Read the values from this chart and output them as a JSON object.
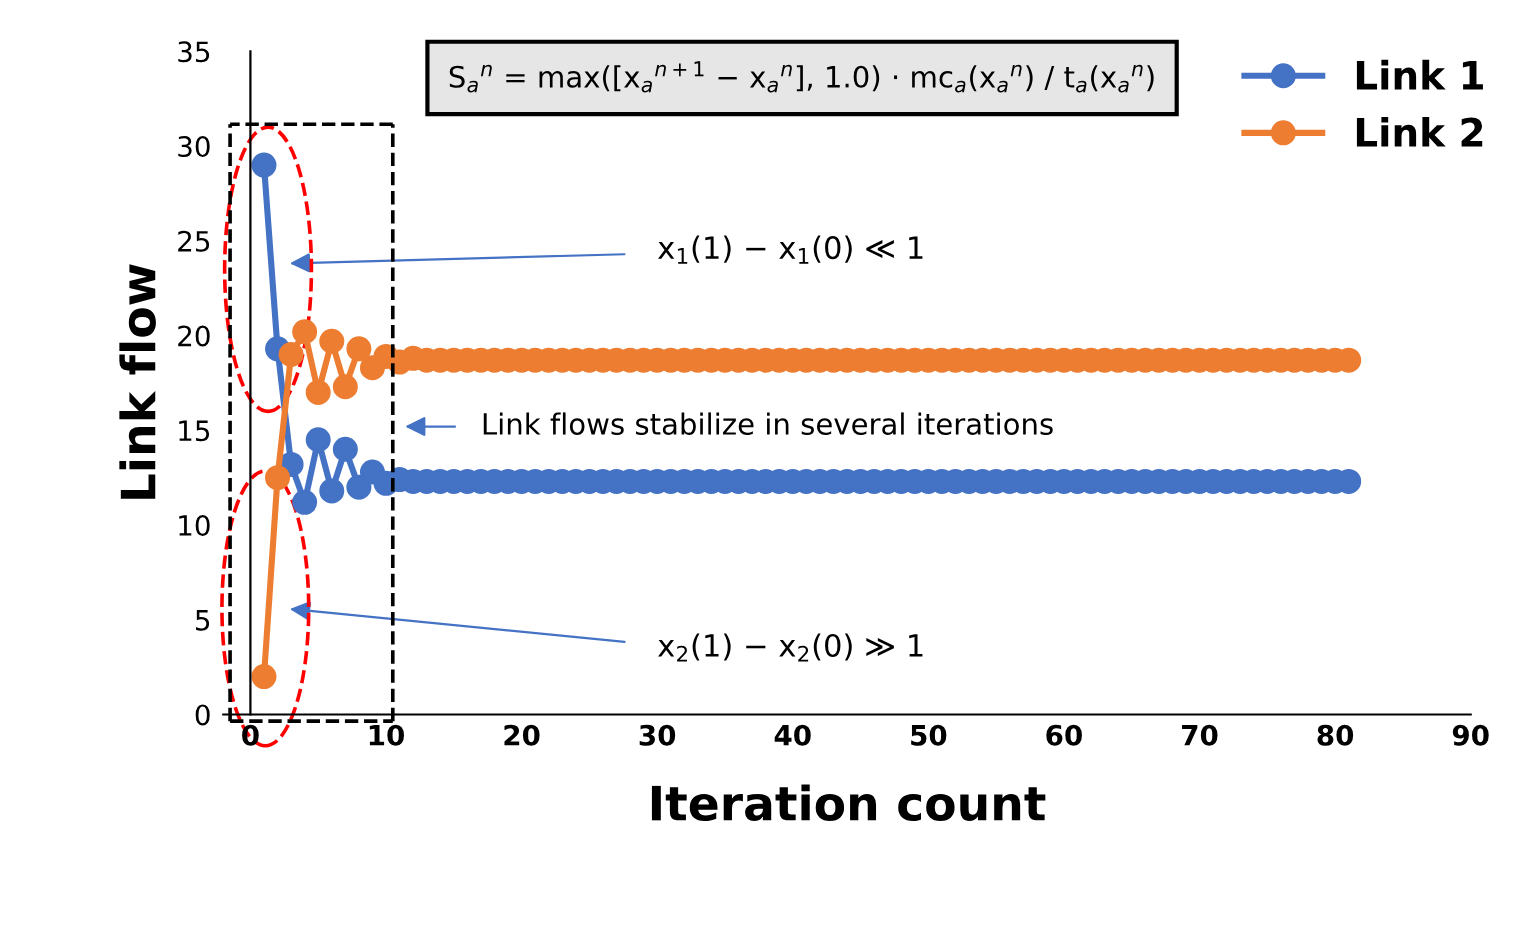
{
  "chart_data": {
    "type": "line",
    "xlabel": "Iteration count",
    "ylabel": "Link flow",
    "x": [
      1,
      2,
      3,
      4,
      5,
      6,
      7,
      8,
      9,
      10,
      11,
      12,
      13,
      14,
      15,
      16,
      17,
      18,
      19,
      20,
      21,
      22,
      23,
      24,
      25,
      26,
      27,
      28,
      29,
      30,
      31,
      32,
      33,
      34,
      35,
      36,
      37,
      38,
      39,
      40,
      41,
      42,
      43,
      44,
      45,
      46,
      47,
      48,
      49,
      50,
      51,
      52,
      53,
      54,
      55,
      56,
      57,
      58,
      59,
      60,
      61,
      62,
      63,
      64,
      65,
      66,
      67,
      68,
      69,
      70,
      71,
      72,
      73,
      74,
      75,
      76,
      77,
      78,
      79,
      80,
      81
    ],
    "series": [
      {
        "name": "Link 1",
        "color": "#4472c4",
        "values": [
          29,
          19.3,
          13.2,
          11.2,
          14.5,
          11.8,
          14,
          12,
          12.8,
          12.2,
          12.4,
          12.3,
          12.3,
          12.3,
          12.3,
          12.3,
          12.3,
          12.3,
          12.3,
          12.3,
          12.3,
          12.3,
          12.3,
          12.3,
          12.3,
          12.3,
          12.3,
          12.3,
          12.3,
          12.3,
          12.3,
          12.3,
          12.3,
          12.3,
          12.3,
          12.3,
          12.3,
          12.3,
          12.3,
          12.3,
          12.3,
          12.3,
          12.3,
          12.3,
          12.3,
          12.3,
          12.3,
          12.3,
          12.3,
          12.3,
          12.3,
          12.3,
          12.3,
          12.3,
          12.3,
          12.3,
          12.3,
          12.3,
          12.3,
          12.3,
          12.3,
          12.3,
          12.3,
          12.3,
          12.3,
          12.3,
          12.3,
          12.3,
          12.3,
          12.3,
          12.3,
          12.3,
          12.3,
          12.3,
          12.3,
          12.3,
          12.3,
          12.3,
          12.3,
          12.3,
          12.3
        ]
      },
      {
        "name": "Link 2",
        "color": "#ed7d31",
        "values": [
          2,
          12.5,
          19,
          20.2,
          17,
          19.7,
          17.3,
          19.3,
          18.3,
          18.9,
          18.6,
          18.8,
          18.7,
          18.7,
          18.7,
          18.7,
          18.7,
          18.7,
          18.7,
          18.7,
          18.7,
          18.7,
          18.7,
          18.7,
          18.7,
          18.7,
          18.7,
          18.7,
          18.7,
          18.7,
          18.7,
          18.7,
          18.7,
          18.7,
          18.7,
          18.7,
          18.7,
          18.7,
          18.7,
          18.7,
          18.7,
          18.7,
          18.7,
          18.7,
          18.7,
          18.7,
          18.7,
          18.7,
          18.7,
          18.7,
          18.7,
          18.7,
          18.7,
          18.7,
          18.7,
          18.7,
          18.7,
          18.7,
          18.7,
          18.7,
          18.7,
          18.7,
          18.7,
          18.7,
          18.7,
          18.7,
          18.7,
          18.7,
          18.7,
          18.7,
          18.7,
          18.7,
          18.7,
          18.7,
          18.7,
          18.7,
          18.7,
          18.7,
          18.7,
          18.7,
          18.7
        ]
      }
    ],
    "xlim": [
      -2,
      90
    ],
    "ylim": [
      0,
      35
    ],
    "xticks": [
      0,
      10,
      20,
      30,
      40,
      50,
      60,
      70,
      80,
      90
    ],
    "yticks": [
      0,
      5,
      10,
      15,
      20,
      25,
      30,
      35
    ],
    "ref_lines": [
      {
        "axis": "x",
        "value": -1.5,
        "color": "#000000",
        "line_style": "dashed"
      },
      {
        "axis": "x",
        "value": 10.5,
        "color": "#000000",
        "line_style": "dashed"
      }
    ],
    "grid": false,
    "legend": "top right",
    "marker": "circle",
    "line_style": "solid",
    "annotations": [
      "S$_{a}$$^{n}$ = max([x$_{a}$$^{n+1}$ − x$_{a}$$^{n}$], 1.0) · mc$_{a}$(x$_{a}$$^{n}$) / t$_{a}$(x$_{a}$$^{n}$)",
      "x$_{1}$(1) − x$_{1}$(0) ≪ 1",
      "Link flows stabilize in several iterations",
      "x$_{2}$(1) − x$_{2}$(0) ≫ 1"
    ]
  }
}
